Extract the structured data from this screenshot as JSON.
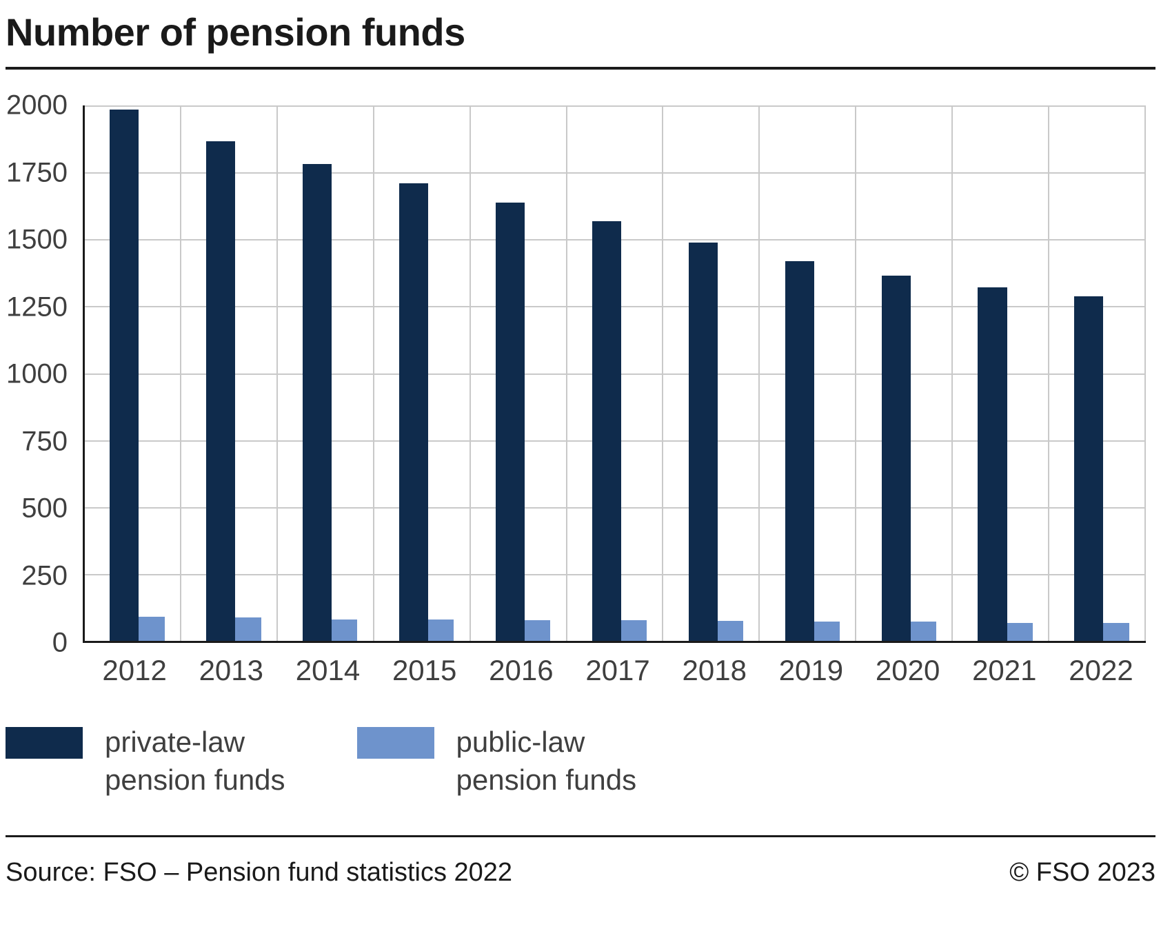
{
  "title": "Number of pension funds",
  "chart_data": {
    "type": "bar",
    "title": "Number of pension funds",
    "categories": [
      "2012",
      "2013",
      "2014",
      "2015",
      "2016",
      "2017",
      "2018",
      "2019",
      "2020",
      "2021",
      "2022"
    ],
    "series": [
      {
        "name": "private-law pension funds",
        "color": "#0f2b4c",
        "values": [
          1984,
          1866,
          1782,
          1708,
          1638,
          1568,
          1489,
          1419,
          1363,
          1320,
          1287
        ]
      },
      {
        "name": "public-law pension funds",
        "color": "#6e93cc",
        "values": [
          89,
          88,
          81,
          79,
          78,
          76,
          74,
          73,
          72,
          68,
          66
        ]
      }
    ],
    "xlabel": "",
    "ylabel": "",
    "ylim": [
      0,
      2000
    ],
    "ytick_step": 250,
    "yticks": [
      "0",
      "250",
      "500",
      "750",
      "1000",
      "1250",
      "1500",
      "1750",
      "2000"
    ],
    "grid": true,
    "legend_position": "bottom"
  },
  "legend": {
    "items": [
      {
        "label_line1": "private-law",
        "label_line2": "pension funds",
        "color": "#0f2b4c"
      },
      {
        "label_line1": "public-law",
        "label_line2": "pension funds",
        "color": "#6e93cc"
      }
    ]
  },
  "footer": {
    "source": "Source: FSO – Pension fund statistics 2022",
    "copyright": "© FSO 2023"
  }
}
